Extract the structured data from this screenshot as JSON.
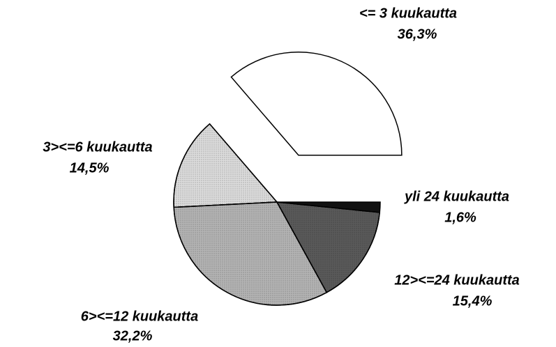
{
  "chart_data": {
    "type": "pie",
    "categories": [
      "<= 3 kuukautta",
      "3><=6 kuukautta",
      "6><=12 kuukautta",
      "12><=24 kuukautta",
      "yli 24 kuukautta"
    ],
    "values": [
      36.3,
      14.5,
      32.2,
      15.4,
      1.6
    ],
    "value_labels": [
      "36,3%",
      "14,5%",
      "32,2%",
      "15,4%",
      "1,6%"
    ],
    "colors": [
      "#ffffff",
      "#dcdcdc",
      "#b4b4b4",
      "#5a5a5a",
      "#111111"
    ],
    "explode": [
      0.5,
      0,
      0,
      0,
      0
    ]
  }
}
